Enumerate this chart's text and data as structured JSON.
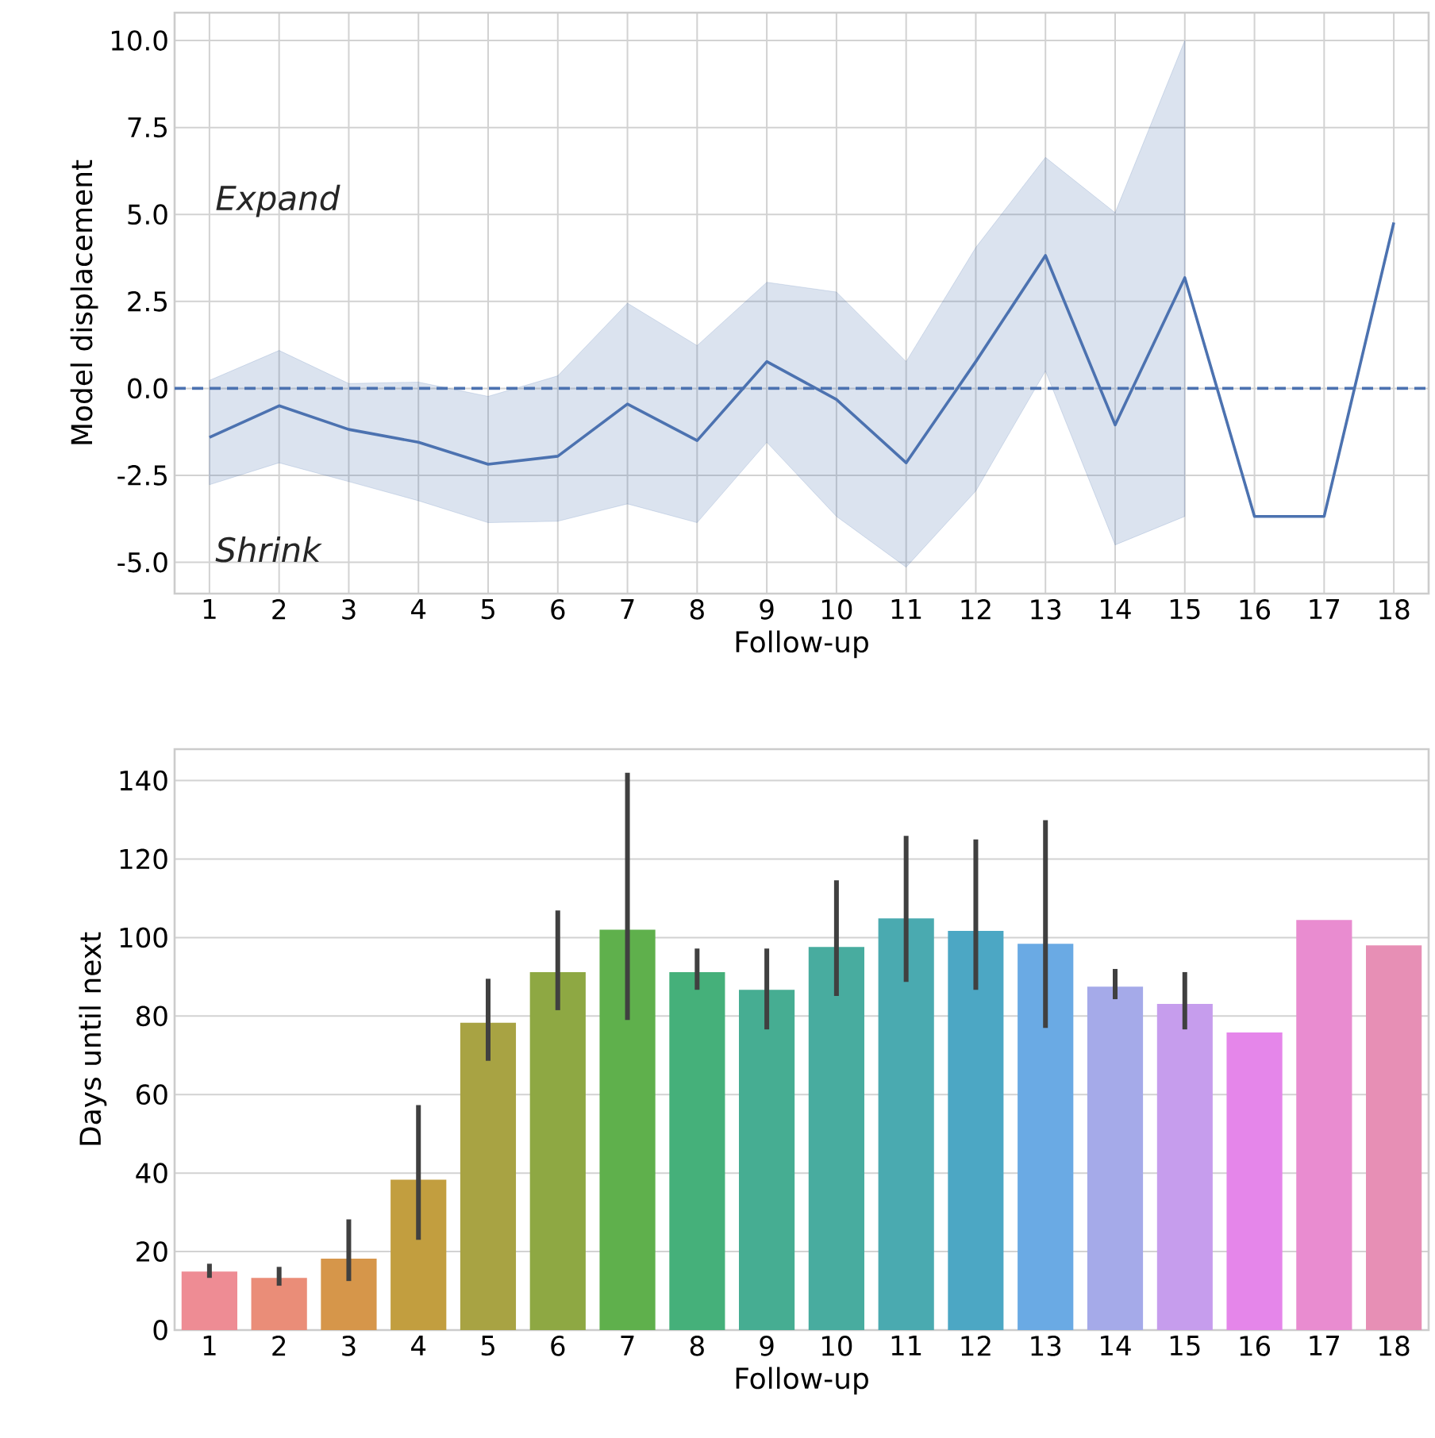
{
  "chart_data": [
    {
      "type": "line",
      "x": [
        1,
        2,
        3,
        4,
        5,
        6,
        7,
        8,
        9,
        10,
        11,
        12,
        13,
        14,
        15,
        16,
        17,
        18
      ],
      "series": [
        {
          "color": "#4c72b0",
          "values": [
            -1.41,
            -0.5,
            -1.18,
            -1.55,
            -2.18,
            -1.95,
            -0.45,
            -1.5,
            0.77,
            -0.32,
            -2.14,
            0.77,
            3.82,
            -1.05,
            3.18,
            -3.68,
            -3.68,
            4.77
          ],
          "upper": [
            0.23,
            1.09,
            0.14,
            0.18,
            -0.23,
            0.36,
            2.45,
            1.23,
            3.05,
            2.77,
            0.77,
            4.05,
            6.64,
            5.05,
            10.0,
            null,
            null,
            null
          ],
          "lower": [
            -2.77,
            -2.14,
            -2.68,
            -3.23,
            -3.86,
            -3.82,
            -3.32,
            -3.86,
            -1.55,
            -3.68,
            -5.14,
            -2.95,
            0.5,
            -4.5,
            -3.68,
            null,
            null,
            null
          ]
        }
      ],
      "xlim": [
        0.5,
        18.5
      ],
      "xticks": [
        1,
        2,
        3,
        4,
        5,
        6,
        7,
        8,
        9,
        10,
        11,
        12,
        13,
        14,
        15,
        16,
        17,
        18
      ],
      "ylim": [
        -5.9,
        10.8
      ],
      "yticks": [
        {
          "value": -5,
          "label": "-5.0"
        },
        {
          "value": -2.5,
          "label": "-2.5"
        },
        {
          "value": 0,
          "label": "0.0"
        },
        {
          "value": 2.5,
          "label": "2.5"
        },
        {
          "value": 5,
          "label": "5.0"
        },
        {
          "value": 7.5,
          "label": "7.5"
        },
        {
          "value": 10,
          "label": "10.0"
        }
      ],
      "ref_lines": [
        {
          "axis": "y",
          "value": 0,
          "color": "#4c72b0",
          "line_style": "dashed"
        }
      ],
      "annotations": [
        "Expand",
        "Shrink"
      ],
      "xlabel": "Follow-up",
      "ylabel": "Model displacement",
      "grid": true
    },
    {
      "type": "bar",
      "categories": [
        "1",
        "2",
        "3",
        "4",
        "5",
        "6",
        "7",
        "8",
        "9",
        "10",
        "11",
        "12",
        "13",
        "14",
        "15",
        "16",
        "17",
        "18"
      ],
      "values": [
        14.9,
        13.3,
        18.2,
        38.3,
        78.3,
        91.2,
        102,
        91.2,
        86.7,
        97.6,
        104.9,
        101.7,
        98.4,
        87.5,
        83.1,
        75.8,
        104.5,
        98
      ],
      "errors": [
        [
          13.3,
          16.9
        ],
        [
          11.3,
          16.1
        ],
        [
          12.5,
          28.2
        ],
        [
          23,
          57.3
        ],
        [
          68.6,
          89.5
        ],
        [
          81.5,
          106.9
        ],
        [
          79,
          142
        ],
        [
          86.7,
          97.2
        ],
        [
          76.6,
          97.2
        ],
        [
          85.1,
          114.6
        ],
        [
          88.7,
          125.9
        ],
        [
          86.7,
          125
        ],
        [
          77,
          129.9
        ],
        [
          84.3,
          92
        ],
        [
          76.6,
          91.2
        ],
        null,
        null,
        null
      ],
      "colors": [
        "#ee8c94",
        "#ea8d78",
        "#d6964a",
        "#c29e3f",
        "#a8a343",
        "#8ea843",
        "#5fb04c",
        "#45b07a",
        "#46ad92",
        "#48ac9f",
        "#4aaab0",
        "#4ca7c4",
        "#6aaae4",
        "#a5aae9",
        "#c69ded",
        "#e586ea",
        "#e98cd0",
        "#e78fb5"
      ],
      "ylim": [
        0,
        148
      ],
      "yticks": [
        0,
        20,
        40,
        60,
        80,
        100,
        120,
        140
      ],
      "xlabel": "Follow-up",
      "ylabel": "Days until next",
      "grid": "y"
    }
  ]
}
